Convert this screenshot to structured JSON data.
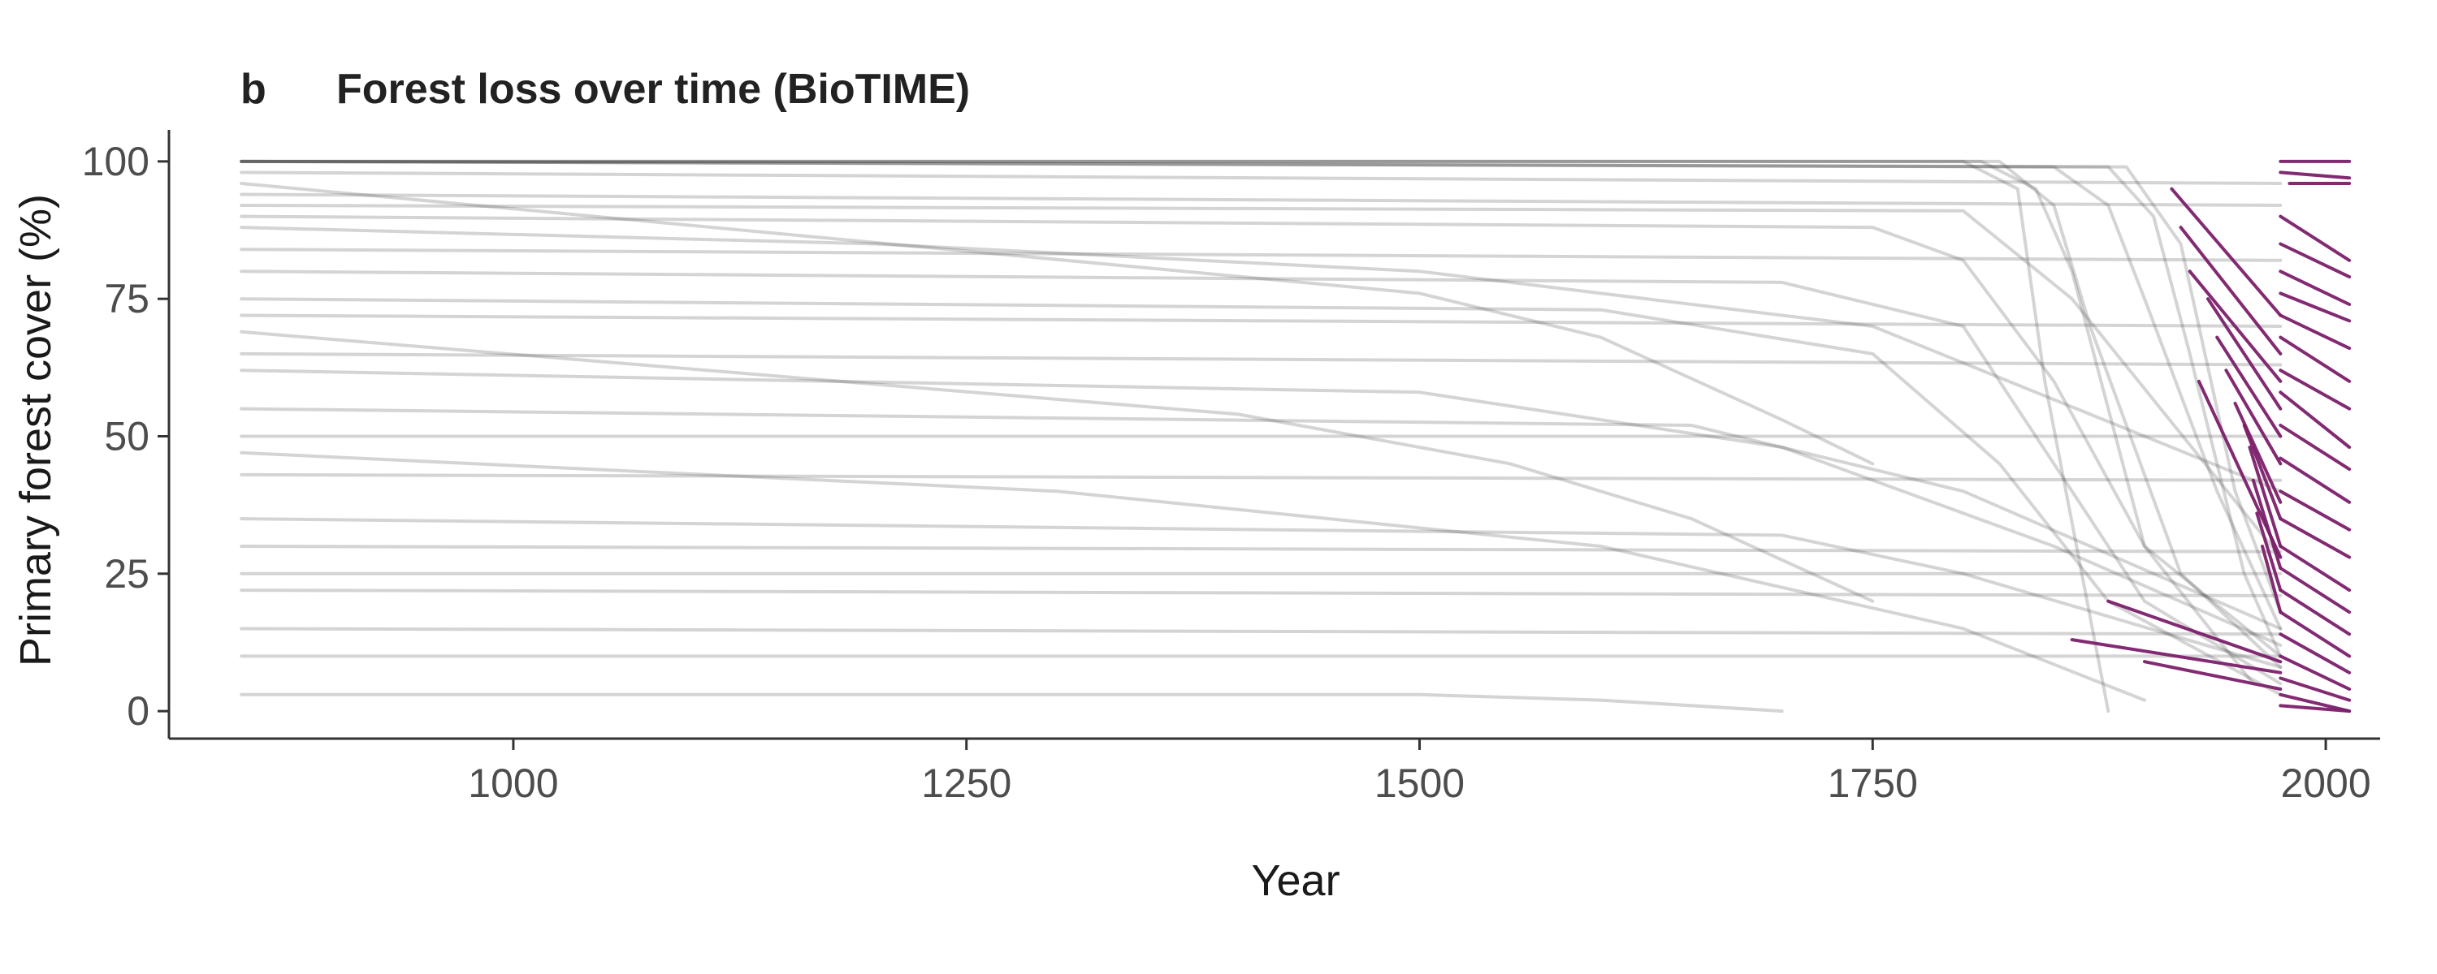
{
  "chart_data": {
    "type": "line",
    "panel_label": "b",
    "title": "Forest loss over time (BioTIME)",
    "xlabel": "Year",
    "ylabel": "Primary forest cover (%)",
    "xlim": [
      810,
      2030
    ],
    "ylim": [
      -5,
      105
    ],
    "x_ticks": [
      1000,
      1250,
      1500,
      1750,
      2000
    ],
    "y_ticks": [
      0,
      25,
      50,
      75,
      100
    ],
    "x_tick_labels": [
      "1000",
      "1250",
      "1500",
      "1750",
      "2000"
    ],
    "y_tick_labels": [
      "0",
      "25",
      "50",
      "75",
      "100"
    ],
    "grid": false,
    "legend": "none",
    "colors": {
      "history": "#3a3a3a",
      "recent": "#7b1f6a",
      "axis": "#333333"
    },
    "series": [
      {
        "role": "historical",
        "lines": [
          {
            "x": [
              850,
              1500,
              1600,
              1700,
              1750
            ],
            "y": [
              96,
              76,
              68,
              53,
              45
            ]
          },
          {
            "x": [
              850,
              1400,
              1550,
              1650,
              1750
            ],
            "y": [
              69,
              54,
              45,
              35,
              20
            ]
          },
          {
            "x": [
              850,
              1500,
              1600,
              1700
            ],
            "y": [
              3,
              3,
              2,
              0
            ]
          },
          {
            "x": [
              850,
              1800,
              1830,
              1845,
              1880
            ],
            "y": [
              100,
              100,
              95,
              60,
              0
            ]
          },
          {
            "x": [
              850,
              1810,
              1840,
              1860,
              1900,
              1960
            ],
            "y": [
              100,
              100,
              95,
              80,
              30,
              5
            ]
          },
          {
            "x": [
              850,
              1820,
              1850,
              1870,
              1920,
              1975
            ],
            "y": [
              100,
              100,
              92,
              70,
              25,
              8
            ]
          },
          {
            "x": [
              850,
              1850,
              1880,
              1900,
              1940,
              1975
            ],
            "y": [
              100,
              99,
              92,
              75,
              40,
              15
            ]
          },
          {
            "x": [
              850,
              1880,
              1905,
              1925,
              1955,
              1975
            ],
            "y": [
              100,
              99,
              90,
              65,
              25,
              10
            ]
          },
          {
            "x": [
              850,
              1890,
              1920,
              1950,
              1975
            ],
            "y": [
              100,
              99,
              85,
              40,
              18
            ]
          },
          {
            "x": [
              850,
              1750,
              1800,
              1850,
              1900,
              1975
            ],
            "y": [
              90,
              88,
              82,
              60,
              30,
              10
            ]
          },
          {
            "x": [
              850,
              1700,
              1800,
              1850,
              1900,
              1975
            ],
            "y": [
              80,
              78,
              70,
              45,
              20,
              5
            ]
          },
          {
            "x": [
              850,
              1600,
              1750,
              1820,
              1880,
              1975
            ],
            "y": [
              75,
              73,
              65,
              45,
              20,
              3
            ]
          },
          {
            "x": [
              850,
              1975
            ],
            "y": [
              50,
              50
            ]
          },
          {
            "x": [
              850,
              1650,
              1800,
              1975
            ],
            "y": [
              55,
              52,
              40,
              15
            ]
          },
          {
            "x": [
              850,
              1975
            ],
            "y": [
              25,
              25
            ]
          },
          {
            "x": [
              850,
              1975
            ],
            "y": [
              22,
              21
            ]
          },
          {
            "x": [
              850,
              1975
            ],
            "y": [
              43,
              42
            ]
          },
          {
            "x": [
              850,
              1700,
              1800,
              1975
            ],
            "y": [
              35,
              32,
              25,
              8
            ]
          },
          {
            "x": [
              850,
              1500,
              1700,
              1850,
              1975
            ],
            "y": [
              62,
              58,
              48,
              30,
              12
            ]
          },
          {
            "x": [
              850,
              1200,
              1500,
              1750,
              1975
            ],
            "y": [
              88,
              85,
              80,
              70,
              40
            ]
          },
          {
            "x": [
              850,
              1800,
              1860,
              1975
            ],
            "y": [
              92,
              91,
              75,
              28
            ]
          },
          {
            "x": [
              850,
              1975
            ],
            "y": [
              98,
              96
            ]
          },
          {
            "x": [
              850,
              1975
            ],
            "y": [
              94,
              92
            ]
          },
          {
            "x": [
              850,
              1975
            ],
            "y": [
              84,
              82
            ]
          },
          {
            "x": [
              850,
              1975
            ],
            "y": [
              72,
              70
            ]
          },
          {
            "x": [
              850,
              1975
            ],
            "y": [
              65,
              63
            ]
          },
          {
            "x": [
              850,
              1975
            ],
            "y": [
              30,
              29
            ]
          },
          {
            "x": [
              850,
              1975
            ],
            "y": [
              15,
              14
            ]
          },
          {
            "x": [
              850,
              1975
            ],
            "y": [
              10,
              10
            ]
          },
          {
            "x": [
              850,
              1300,
              1600,
              1800,
              1900
            ],
            "y": [
              47,
              40,
              30,
              15,
              2
            ]
          }
        ]
      },
      {
        "role": "recent",
        "lines": [
          {
            "x": [
              1915,
              1975
            ],
            "y": [
              95,
              72
            ]
          },
          {
            "x": [
              1920,
              1975
            ],
            "y": [
              88,
              65
            ]
          },
          {
            "x": [
              1925,
              1975
            ],
            "y": [
              80,
              60
            ]
          },
          {
            "x": [
              1935,
              1975
            ],
            "y": [
              75,
              55
            ]
          },
          {
            "x": [
              1940,
              1975
            ],
            "y": [
              68,
              50
            ]
          },
          {
            "x": [
              1945,
              1975
            ],
            "y": [
              62,
              45
            ]
          },
          {
            "x": [
              1930,
              1975
            ],
            "y": [
              60,
              28
            ]
          },
          {
            "x": [
              1950,
              1975
            ],
            "y": [
              56,
              38
            ]
          },
          {
            "x": [
              1955,
              1975
            ],
            "y": [
              52,
              35
            ]
          },
          {
            "x": [
              1958,
              1975
            ],
            "y": [
              48,
              30
            ]
          },
          {
            "x": [
              1960,
              1975
            ],
            "y": [
              42,
              26
            ]
          },
          {
            "x": [
              1962,
              1975
            ],
            "y": [
              36,
              22
            ]
          },
          {
            "x": [
              1965,
              1975
            ],
            "y": [
              30,
              18
            ]
          },
          {
            "x": [
              1860,
              1975
            ],
            "y": [
              13,
              7
            ]
          },
          {
            "x": [
              1900,
              1975
            ],
            "y": [
              9,
              4
            ]
          },
          {
            "x": [
              1880,
              1975
            ],
            "y": [
              20,
              9
            ]
          },
          {
            "x": [
              1975,
              2013
            ],
            "y": [
              100,
              100
            ]
          },
          {
            "x": [
              1975,
              2013
            ],
            "y": [
              98,
              97
            ]
          },
          {
            "x": [
              1980,
              2013
            ],
            "y": [
              96,
              96
            ]
          },
          {
            "x": [
              1975,
              2013
            ],
            "y": [
              90,
              82
            ]
          },
          {
            "x": [
              1975,
              2013
            ],
            "y": [
              85,
              79
            ]
          },
          {
            "x": [
              1975,
              2013
            ],
            "y": [
              80,
              74
            ]
          },
          {
            "x": [
              1975,
              2013
            ],
            "y": [
              76,
              71
            ]
          },
          {
            "x": [
              1975,
              2013
            ],
            "y": [
              72,
              66
            ]
          },
          {
            "x": [
              1975,
              2013
            ],
            "y": [
              68,
              60
            ]
          },
          {
            "x": [
              1975,
              2013
            ],
            "y": [
              62,
              55
            ]
          },
          {
            "x": [
              1975,
              2013
            ],
            "y": [
              58,
              48
            ]
          },
          {
            "x": [
              1975,
              2013
            ],
            "y": [
              52,
              44
            ]
          },
          {
            "x": [
              1975,
              2013
            ],
            "y": [
              46,
              38
            ]
          },
          {
            "x": [
              1975,
              2013
            ],
            "y": [
              40,
              33
            ]
          },
          {
            "x": [
              1975,
              2013
            ],
            "y": [
              35,
              28
            ]
          },
          {
            "x": [
              1975,
              2013
            ],
            "y": [
              30,
              22
            ]
          },
          {
            "x": [
              1975,
              2013
            ],
            "y": [
              26,
              18
            ]
          },
          {
            "x": [
              1975,
              2013
            ],
            "y": [
              22,
              14
            ]
          },
          {
            "x": [
              1975,
              2013
            ],
            "y": [
              18,
              10
            ]
          },
          {
            "x": [
              1975,
              2013
            ],
            "y": [
              14,
              7
            ]
          },
          {
            "x": [
              1975,
              2013
            ],
            "y": [
              10,
              4
            ]
          },
          {
            "x": [
              1975,
              2013
            ],
            "y": [
              6,
              2
            ]
          },
          {
            "x": [
              1975,
              2013
            ],
            "y": [
              3,
              0
            ]
          },
          {
            "x": [
              1975,
              2013
            ],
            "y": [
              1,
              0
            ]
          }
        ]
      }
    ]
  }
}
